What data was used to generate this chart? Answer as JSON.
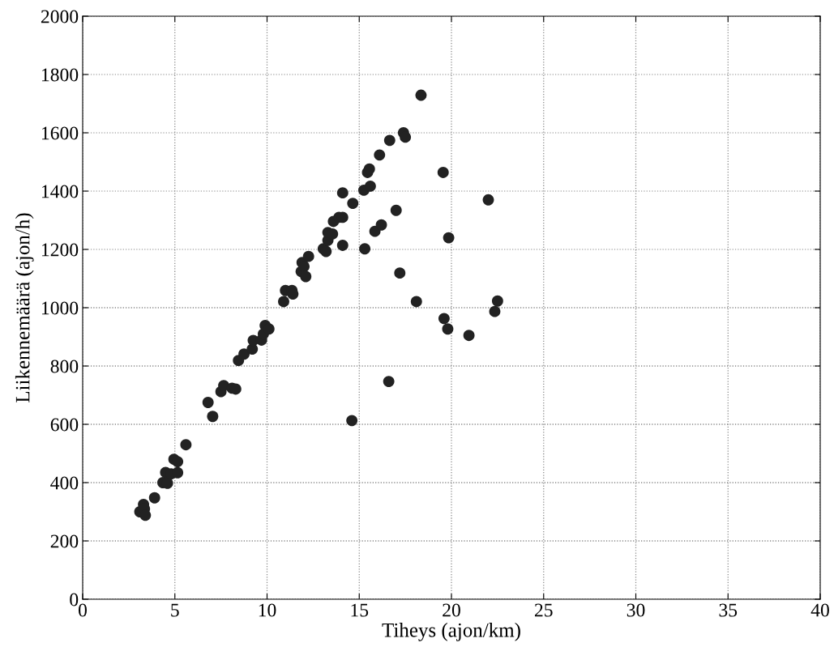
{
  "chart_data": {
    "type": "scatter",
    "xlabel": "Tiheys (ajon/km)",
    "ylabel": "Liikennemäärä (ajon/h)",
    "x": [
      3.1,
      3.3,
      3.35,
      3.4,
      3.9,
      4.35,
      4.5,
      4.6,
      4.8,
      4.95,
      5.15,
      5.15,
      5.6,
      6.8,
      7.05,
      7.5,
      7.65,
      8.1,
      8.3,
      8.45,
      8.75,
      9.2,
      9.25,
      9.7,
      9.8,
      9.9,
      10.1,
      10.9,
      11.0,
      11.35,
      11.4,
      11.85,
      11.9,
      12.0,
      12.1,
      12.25,
      13.05,
      13.2,
      13.3,
      13.3,
      13.55,
      13.6,
      13.9,
      14.1,
      14.1,
      14.1,
      14.65,
      14.6,
      15.25,
      15.6,
      15.3,
      15.45,
      15.55,
      15.85,
      16.2,
      16.1,
      16.65,
      16.6,
      17.0,
      17.2,
      17.4,
      17.5,
      18.35,
      18.1,
      19.55,
      19.6,
      19.8,
      19.85,
      20.95,
      22.0,
      22.35,
      22.5
    ],
    "series": [
      {
        "color": "#222222",
        "values": [
          300,
          325,
          310,
          288,
          348,
          400,
          435,
          398,
          430,
          480,
          472,
          434,
          530,
          675,
          627,
          712,
          733,
          724,
          721,
          819,
          841,
          858,
          888,
          889,
          910,
          939,
          927,
          1021,
          1059,
          1059,
          1047,
          1124,
          1155,
          1141,
          1107,
          1176,
          1202,
          1193,
          1231,
          1258,
          1253,
          1296,
          1310,
          1310,
          1214,
          1394,
          1358,
          613,
          1403,
          1417,
          1202,
          1464,
          1476,
          1262,
          1284,
          1524,
          1574,
          747,
          1334,
          1119,
          1600,
          1585,
          1729,
          1021,
          1464,
          963,
          927,
          1240,
          905,
          1370,
          987,
          1023
        ]
      }
    ],
    "xlim": [
      0,
      40
    ],
    "xticks": [
      0,
      5,
      10,
      15,
      20,
      25,
      30,
      35,
      40
    ],
    "ylim": [
      0,
      2000
    ],
    "yticks": [
      0,
      200,
      400,
      600,
      800,
      1000,
      1200,
      1400,
      1600,
      1800,
      2000
    ],
    "grid": true,
    "marker": "circle",
    "legend": false
  }
}
